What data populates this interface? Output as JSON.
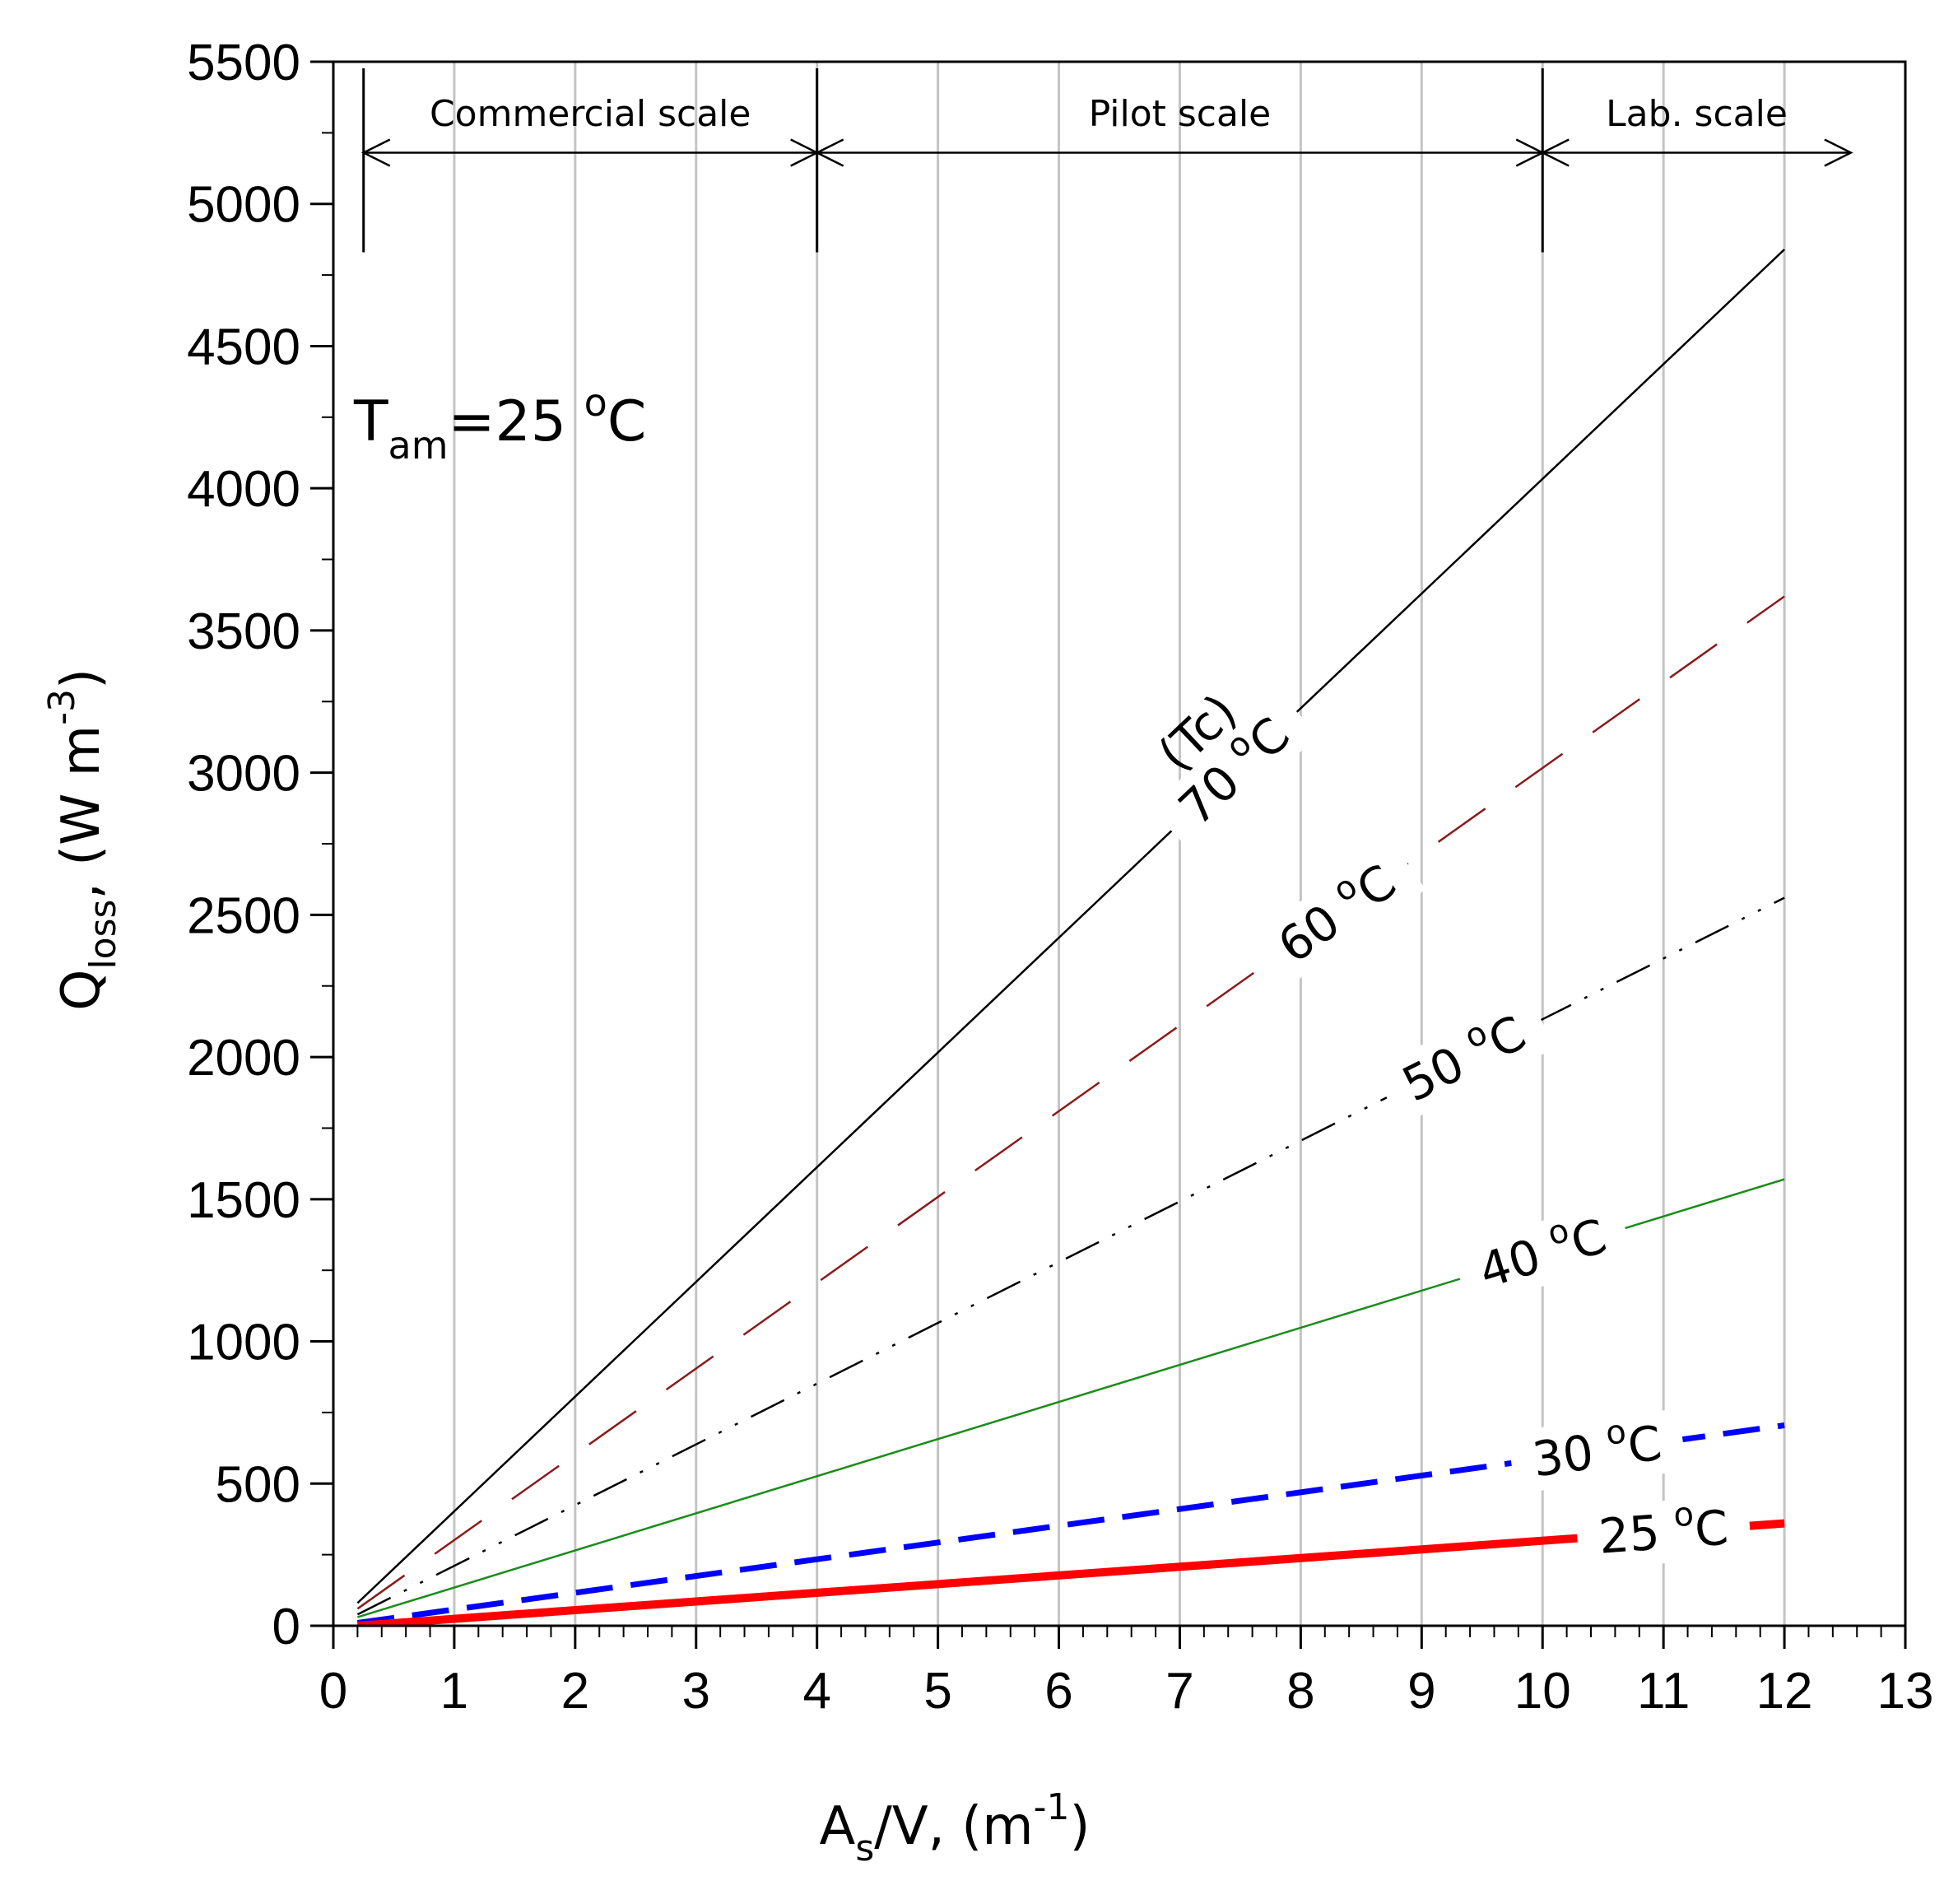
{
  "chart_data": {
    "type": "line",
    "x_label": {
      "prefix": "A",
      "sub": "s",
      "middle": "/V, (m",
      "sup": "-1",
      "suffix": ")"
    },
    "y_label": {
      "prefix": "Q",
      "sub": "loss",
      "middle": ", (W m",
      "sup": "-3",
      "suffix": ")"
    },
    "xlim": [
      0,
      13
    ],
    "ylim": [
      0,
      5500
    ],
    "x_ticks": [
      0,
      1,
      2,
      3,
      4,
      5,
      6,
      7,
      8,
      9,
      10,
      11,
      12,
      13
    ],
    "y_ticks": [
      0,
      500,
      1000,
      1500,
      2000,
      2500,
      3000,
      3500,
      4000,
      4500,
      5000,
      5500
    ],
    "grid_x": [
      1,
      2,
      3,
      4,
      5,
      6,
      7,
      8,
      9,
      10,
      11,
      12
    ],
    "ambient": {
      "text": "T",
      "sub": "am",
      "value": "=25 ",
      "sup": "o",
      "unit": "C"
    },
    "series_annotation": "(Tc)",
    "series": [
      {
        "name": "70 °C",
        "label_num": "70",
        "color": "#000000",
        "width": 2.5,
        "dash": "",
        "x": [
          0.2,
          12
        ],
        "y": [
          80,
          4840
        ]
      },
      {
        "name": "60 °C",
        "label_num": "60",
        "color": "#8b1a1a",
        "width": 2.5,
        "dash": "70 45",
        "x": [
          0.2,
          12
        ],
        "y": [
          60,
          3620
        ]
      },
      {
        "name": "50 °C",
        "label_num": "50",
        "color": "#000000",
        "width": 2.5,
        "dash": "45 18 4 18 4 18",
        "x": [
          0.2,
          12
        ],
        "y": [
          40,
          2560
        ]
      },
      {
        "name": "40 °C",
        "label_num": "40",
        "color": "#1a8c1a",
        "width": 2.5,
        "dash": "",
        "x": [
          0.2,
          12
        ],
        "y": [
          30,
          1570
        ]
      },
      {
        "name": "30 °C",
        "label_num": "30",
        "color": "#0000ff",
        "width": 7,
        "dash": "45 22",
        "x": [
          0.2,
          12
        ],
        "y": [
          10,
          705
        ]
      },
      {
        "name": "25 °C",
        "label_num": "25",
        "color": "#ff0000",
        "width": 10,
        "dash": "",
        "x": [
          0.2,
          12
        ],
        "y": [
          0,
          360
        ]
      }
    ],
    "degree_sym": "o",
    "unit_c": "C",
    "regions": [
      {
        "label": "Commercial scale",
        "x_start": 0.25,
        "x_end": 4
      },
      {
        "label": "Pilot scale",
        "x_start": 4,
        "x_end": 10
      },
      {
        "label": "Lab. scale",
        "x_start": 10,
        "x_end": 12.55
      }
    ],
    "region_marker_y": 5180,
    "region_label_y": 5320,
    "region_boundaries": [
      0.25,
      4,
      10
    ]
  }
}
